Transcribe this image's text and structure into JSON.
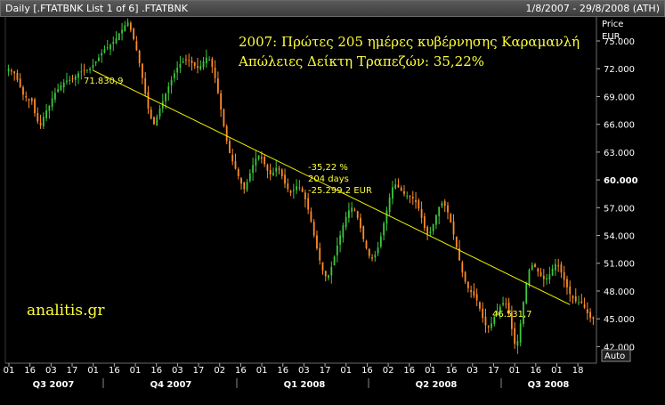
{
  "window": {
    "title": "Daily [.FTATBNK List 1 of 6] .FTATBNK",
    "range": "1/8/2007 - 29/8/2008 (ATH)"
  },
  "chart_data": {
    "type": "candlestick",
    "annotation_title": "2007: Πρώτες 205 ημέρες κυβέρνησης Καραμανλή",
    "annotation_subtitle": "Απώλειες Δείκτη Τραπεζών: 35,22%",
    "watermark": "analitis.gr",
    "y_axis": {
      "title": "Price",
      "unit": "EUR",
      "ylim": [
        40500,
        77500
      ],
      "ticks": [
        "75.000",
        "72.000",
        "69.000",
        "66.000",
        "63.000",
        "60.000",
        "57.000",
        "54.000",
        "51.000",
        "48.000",
        "45.000",
        "42.000"
      ],
      "tick_values": [
        75000,
        72000,
        69000,
        66000,
        63000,
        60000,
        57000,
        54000,
        51000,
        48000,
        45000,
        42000
      ],
      "bold_ticks": [
        "60.000"
      ]
    },
    "x_axis": {
      "day_ticks": [
        "01",
        "16",
        "03",
        "17",
        "01",
        "16",
        "01",
        "16",
        "03",
        "17",
        "02",
        "16",
        "01",
        "16",
        "03",
        "17",
        "01",
        "16",
        "02",
        "16",
        "01",
        "16",
        "03",
        "17",
        "01",
        "16",
        "01",
        "18"
      ],
      "quarters": [
        "Q3 2007",
        "Q4 2007",
        "Q1 2008",
        "Q2 2008",
        "Q3 2008"
      ],
      "scale_button": "Auto"
    },
    "trendline": {
      "start_label": "71.830,9",
      "end_label": "46.531,7",
      "start_value": 71830.9,
      "end_value": 46531.7,
      "change_percent": "-35,22 %",
      "days": "204 days",
      "change_eur": "-25.299,2 EUR"
    },
    "series_close": [
      72000,
      71700,
      71500,
      70800,
      70000,
      69200,
      68900,
      68600,
      68500,
      67200,
      66300,
      65900,
      66800,
      67500,
      68000,
      68800,
      69400,
      69800,
      70200,
      70500,
      70700,
      70800,
      70900,
      71200,
      71500,
      71700,
      71800,
      71900,
      72000,
      72400,
      72800,
      73200,
      73700,
      74100,
      74300,
      74600,
      74900,
      75300,
      75800,
      76200,
      76700,
      77000,
      76200,
      75200,
      74000,
      72600,
      71000,
      69300,
      67700,
      66600,
      66000,
      66800,
      67700,
      68500,
      69300,
      70100,
      70800,
      71500,
      72100,
      72500,
      72800,
      73000,
      72900,
      72600,
      72300,
      72100,
      72300,
      72800,
      73200,
      73000,
      72200,
      71000,
      69400,
      67600,
      65800,
      64200,
      62900,
      62000,
      61200,
      60400,
      59600,
      59000,
      59800,
      60700,
      61600,
      62300,
      62600,
      62300,
      61700,
      61000,
      60600,
      60800,
      61300,
      61100,
      60400,
      59600,
      59000,
      58600,
      58900,
      59300,
      59200,
      58700,
      57900,
      56800,
      55500,
      54000,
      52600,
      51300,
      50200,
      49600,
      49700,
      50600,
      51700,
      52900,
      54000,
      55100,
      56000,
      56700,
      57000,
      56700,
      55900,
      54800,
      53600,
      52600,
      51800,
      51500,
      51900,
      52700,
      53900,
      55300,
      56700,
      58100,
      59200,
      59500,
      59200,
      58800,
      58500,
      58300,
      58200,
      58000,
      57600,
      56900,
      55900,
      54800,
      54200,
      54400,
      55200,
      56200,
      57100,
      57500,
      57200,
      56500,
      55400,
      54100,
      52700,
      51300,
      50000,
      49000,
      48300,
      47900,
      47500,
      47000,
      46100,
      45100,
      44300,
      44100,
      44500,
      45200,
      45800,
      46300,
      46700,
      46600,
      45600,
      43900,
      42300,
      42600,
      44500,
      46800,
      48800,
      50300,
      50800,
      50600,
      50100,
      49600,
      49300,
      49400,
      49800,
      50400,
      50900,
      50700,
      50000,
      49200,
      48400,
      47700,
      47200,
      46900,
      46800,
      46700,
      46200,
      45600,
      45100,
      45000
    ],
    "volatility": 900
  }
}
